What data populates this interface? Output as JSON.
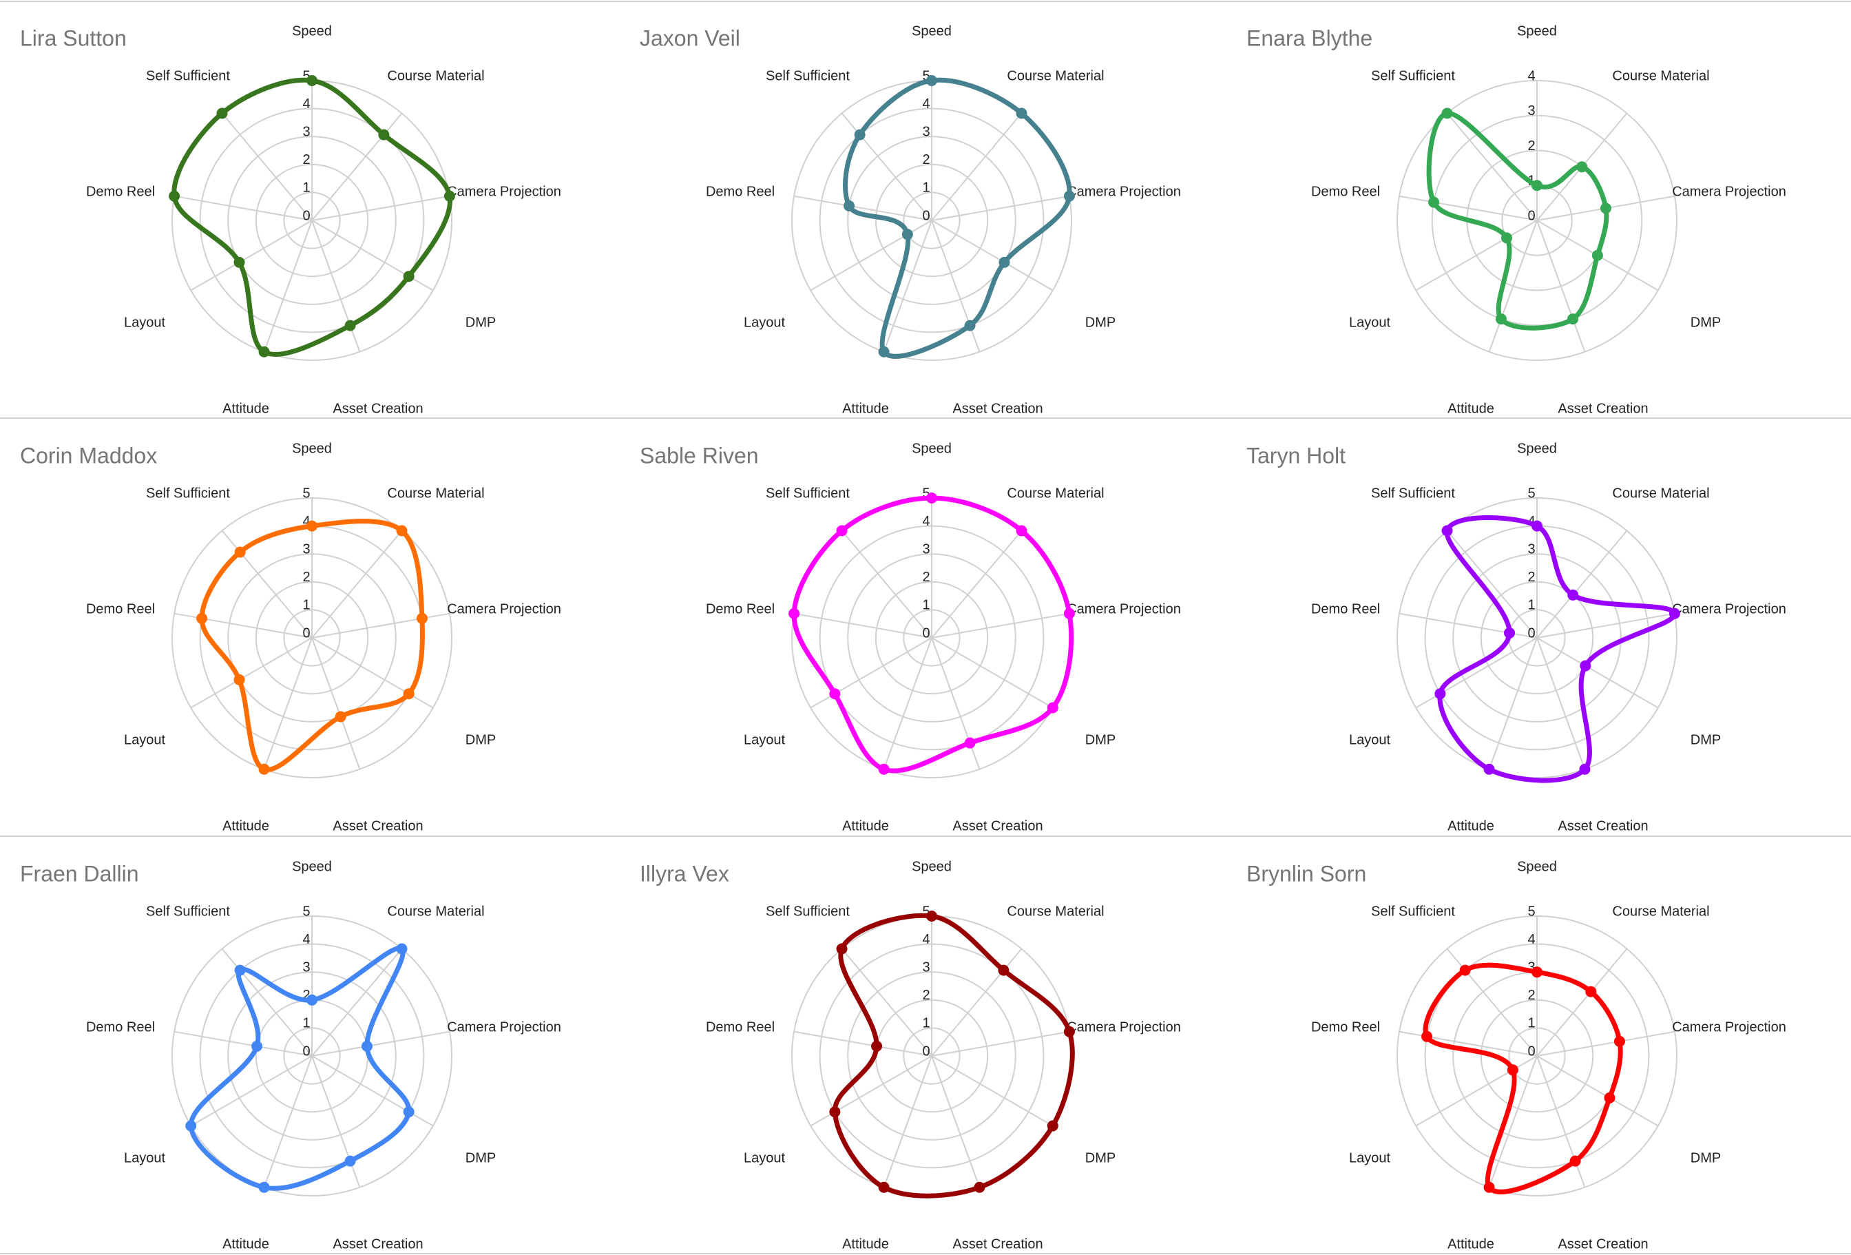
{
  "chart_data": [
    {
      "type": "radar",
      "title": "Lira Sutton",
      "color": "#38761d",
      "rmax": 5,
      "axes": [
        "Speed",
        "Course Material",
        "Camera Projection",
        "DMP",
        "Asset Creation",
        "Attitude",
        "Layout",
        "Demo Reel",
        "Self Sufficient"
      ],
      "ticks": [
        "0",
        "1",
        "2",
        "3",
        "4",
        "5"
      ],
      "values": [
        5,
        4,
        5,
        4,
        4,
        5,
        3,
        5,
        5
      ]
    },
    {
      "type": "radar",
      "title": "Jaxon Veil",
      "color": "#45818e",
      "rmax": 5,
      "axes": [
        "Speed",
        "Course Material",
        "Camera Projection",
        "DMP",
        "Asset Creation",
        "Attitude",
        "Layout",
        "Demo Reel",
        "Self Sufficient"
      ],
      "ticks": [
        "0",
        "1",
        "2",
        "3",
        "4",
        "5"
      ],
      "values": [
        5,
        5,
        5,
        3,
        4,
        5,
        1,
        3,
        4
      ]
    },
    {
      "type": "radar",
      "title": "Enara Blythe",
      "color": "#34a853",
      "rmax": 4,
      "axes": [
        "Speed",
        "Course Material",
        "Camera Projection",
        "DMP",
        "Asset Creation",
        "Attitude",
        "Layout",
        "Demo Reel",
        "Self Sufficient"
      ],
      "ticks": [
        "0",
        "1",
        "2",
        "3",
        "4"
      ],
      "values": [
        1,
        2,
        2,
        2,
        3,
        3,
        1,
        3,
        4
      ]
    },
    {
      "type": "radar",
      "title": "Corin Maddox",
      "color": "#ff6d01",
      "rmax": 5,
      "axes": [
        "Speed",
        "Course Material",
        "Camera Projection",
        "DMP",
        "Asset Creation",
        "Attitude",
        "Layout",
        "Demo Reel",
        "Self Sufficient"
      ],
      "ticks": [
        "0",
        "1",
        "2",
        "3",
        "4",
        "5"
      ],
      "values": [
        4,
        5,
        4,
        4,
        3,
        5,
        3,
        4,
        4
      ]
    },
    {
      "type": "radar",
      "title": "Sable Riven",
      "color": "#ff00ff",
      "rmax": 5,
      "axes": [
        "Speed",
        "Course Material",
        "Camera Projection",
        "DMP",
        "Asset Creation",
        "Attitude",
        "Layout",
        "Demo Reel",
        "Self Sufficient"
      ],
      "ticks": [
        "0",
        "1",
        "2",
        "3",
        "4",
        "5"
      ],
      "values": [
        5,
        5,
        5,
        5,
        4,
        5,
        4,
        5,
        5
      ]
    },
    {
      "type": "radar",
      "title": "Taryn Holt",
      "color": "#9900ff",
      "rmax": 5,
      "axes": [
        "Speed",
        "Course Material",
        "Camera Projection",
        "DMP",
        "Asset Creation",
        "Attitude",
        "Layout",
        "Demo Reel",
        "Self Sufficient"
      ],
      "ticks": [
        "0",
        "1",
        "2",
        "3",
        "4",
        "5"
      ],
      "values": [
        4,
        2,
        5,
        2,
        5,
        5,
        4,
        1,
        5
      ]
    },
    {
      "type": "radar",
      "title": "Fraen Dallin",
      "color": "#4285f4",
      "rmax": 5,
      "axes": [
        "Speed",
        "Course Material",
        "Camera Projection",
        "DMP",
        "Asset Creation",
        "Attitude",
        "Layout",
        "Demo Reel",
        "Self Sufficient"
      ],
      "ticks": [
        "0",
        "1",
        "2",
        "3",
        "4",
        "5"
      ],
      "values": [
        2,
        5,
        2,
        4,
        4,
        5,
        5,
        2,
        4
      ]
    },
    {
      "type": "radar",
      "title": "Illyra Vex",
      "color": "#980000",
      "rmax": 5,
      "axes": [
        "Speed",
        "Course Material",
        "Camera Projection",
        "DMP",
        "Asset Creation",
        "Attitude",
        "Layout",
        "Demo Reel",
        "Self Sufficient"
      ],
      "ticks": [
        "0",
        "1",
        "2",
        "3",
        "4",
        "5"
      ],
      "values": [
        5,
        4,
        5,
        5,
        5,
        5,
        4,
        2,
        5
      ]
    },
    {
      "type": "radar",
      "title": "Brynlin Sorn",
      "color": "#ff0000",
      "rmax": 5,
      "axes": [
        "Speed",
        "Course Material",
        "Camera Projection",
        "DMP",
        "Asset Creation",
        "Attitude",
        "Layout",
        "Demo Reel",
        "Self Sufficient"
      ],
      "ticks": [
        "0",
        "1",
        "2",
        "3",
        "4",
        "5"
      ],
      "values": [
        3,
        3,
        3,
        3,
        4,
        5,
        1,
        4,
        4
      ]
    }
  ]
}
